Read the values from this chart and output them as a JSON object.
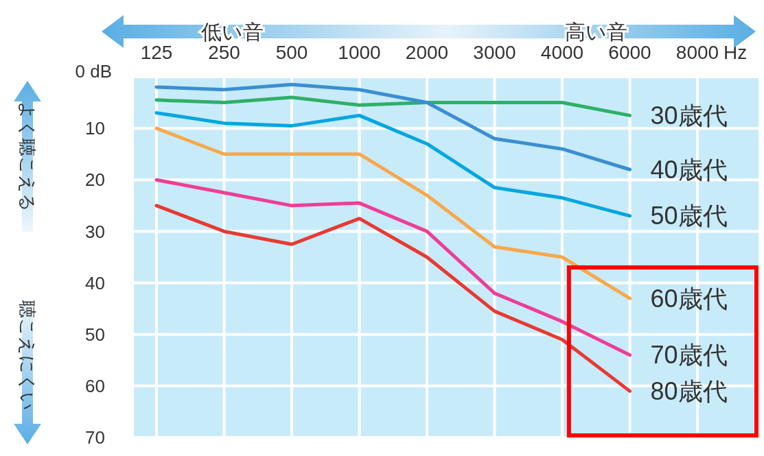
{
  "chart_data": {
    "type": "line",
    "xlabel": "Hz",
    "categories": [
      "125",
      "250",
      "500",
      "1000",
      "2000",
      "3000",
      "4000",
      "6000",
      "8000"
    ],
    "ylim": [
      70,
      0
    ],
    "yticks": [
      {
        "value": 0,
        "label": "0 dB"
      },
      10,
      20,
      30,
      40,
      50,
      60,
      70
    ],
    "grid": true,
    "marker": "none",
    "line_style": "solid",
    "series": [
      {
        "name": "30歳代",
        "color": "#2eb068",
        "values": [
          4.5,
          5,
          4,
          5.5,
          5,
          5,
          5,
          7.5,
          null
        ]
      },
      {
        "name": "40歳代",
        "color": "#3a8fd0",
        "values": [
          2,
          2.5,
          1.5,
          2.5,
          5,
          12,
          14,
          18,
          null
        ]
      },
      {
        "name": "50歳代",
        "color": "#00a6e0",
        "values": [
          7,
          9,
          9.5,
          7.5,
          13,
          21.5,
          23.5,
          27,
          null
        ]
      },
      {
        "name": "60歳代",
        "color": "#f8a84a",
        "values": [
          10,
          15,
          15,
          15,
          23,
          33,
          35,
          43,
          null
        ]
      },
      {
        "name": "70歳代",
        "color": "#ee3e96",
        "values": [
          20,
          22.5,
          25,
          24.5,
          30,
          42,
          47.5,
          54,
          null
        ]
      },
      {
        "name": "80歳代",
        "color": "#e83a32",
        "values": [
          25,
          30,
          32.5,
          27.5,
          35,
          45.5,
          51,
          61,
          null
        ]
      }
    ],
    "annotations": [
      "低い音",
      "高い音",
      "よく聴こえる",
      "聴こえにくい"
    ]
  }
}
